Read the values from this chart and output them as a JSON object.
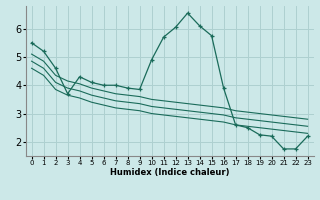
{
  "xlabel": "Humidex (Indice chaleur)",
  "ylabel": "",
  "bg_color": "#cce8e8",
  "grid_color": "#aed0d0",
  "line_color": "#1a6b5a",
  "x_ticks": [
    0,
    1,
    2,
    3,
    4,
    5,
    6,
    7,
    8,
    9,
    10,
    11,
    12,
    13,
    14,
    15,
    16,
    17,
    18,
    19,
    20,
    21,
    22,
    23
  ],
  "y_ticks": [
    2,
    3,
    4,
    5,
    6
  ],
  "xlim": [
    -0.5,
    23.5
  ],
  "ylim": [
    1.5,
    6.8
  ],
  "series": [
    {
      "x": [
        0,
        1,
        2,
        3,
        4,
        5,
        6,
        7,
        8,
        9,
        10,
        11,
        12,
        13,
        14,
        15,
        16,
        17,
        18,
        19,
        20,
        21,
        22,
        23
      ],
      "y": [
        5.5,
        5.2,
        4.6,
        3.7,
        4.3,
        4.1,
        4.0,
        4.0,
        3.9,
        3.85,
        4.9,
        5.7,
        6.05,
        6.55,
        6.1,
        5.75,
        3.9,
        2.6,
        2.5,
        2.25,
        2.2,
        1.75,
        1.75,
        2.2
      ],
      "marker": "+"
    },
    {
      "x": [
        0,
        1,
        2,
        3,
        4,
        5,
        6,
        7,
        8,
        9,
        10,
        11,
        12,
        13,
        14,
        15,
        16,
        17,
        18,
        19,
        20,
        21,
        22,
        23
      ],
      "y": [
        5.1,
        4.85,
        4.35,
        4.15,
        4.05,
        3.9,
        3.8,
        3.7,
        3.65,
        3.6,
        3.5,
        3.45,
        3.4,
        3.35,
        3.3,
        3.25,
        3.2,
        3.1,
        3.05,
        3.0,
        2.95,
        2.9,
        2.85,
        2.8
      ],
      "marker": null
    },
    {
      "x": [
        0,
        1,
        2,
        3,
        4,
        5,
        6,
        7,
        8,
        9,
        10,
        11,
        12,
        13,
        14,
        15,
        16,
        17,
        18,
        19,
        20,
        21,
        22,
        23
      ],
      "y": [
        4.85,
        4.6,
        4.1,
        3.9,
        3.8,
        3.65,
        3.55,
        3.45,
        3.4,
        3.35,
        3.25,
        3.2,
        3.15,
        3.1,
        3.05,
        3.0,
        2.95,
        2.85,
        2.8,
        2.75,
        2.7,
        2.65,
        2.6,
        2.55
      ],
      "marker": null
    },
    {
      "x": [
        0,
        1,
        2,
        3,
        4,
        5,
        6,
        7,
        8,
        9,
        10,
        11,
        12,
        13,
        14,
        15,
        16,
        17,
        18,
        19,
        20,
        21,
        22,
        23
      ],
      "y": [
        4.6,
        4.35,
        3.85,
        3.65,
        3.55,
        3.4,
        3.3,
        3.2,
        3.15,
        3.1,
        3.0,
        2.95,
        2.9,
        2.85,
        2.8,
        2.75,
        2.7,
        2.6,
        2.55,
        2.5,
        2.45,
        2.4,
        2.35,
        2.3
      ],
      "marker": null
    }
  ]
}
